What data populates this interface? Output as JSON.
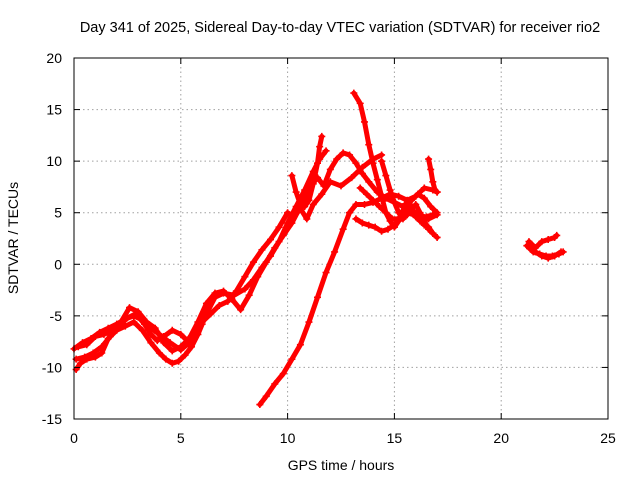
{
  "chart_data": {
    "type": "scatter",
    "title": "Day 341 of 2025, Sidereal Day-to-day VTEC variation (SDTVAR) for receiver rio2",
    "xlabel": "GPS time / hours",
    "ylabel": "SDTVAR / TECUs",
    "xlim": [
      0,
      25
    ],
    "ylim": [
      -15,
      20
    ],
    "x_ticks": [
      "0",
      "5",
      "10",
      "15",
      "20",
      "25"
    ],
    "y_ticks": [
      "-15",
      "-10",
      "-5",
      "0",
      "5",
      "10",
      "15",
      "20"
    ],
    "grid": true,
    "color": "#ff0000",
    "marker": "plus",
    "series": [
      {
        "name": "track-1",
        "points": [
          [
            0.0,
            -8.2
          ],
          [
            0.4,
            -7.6
          ],
          [
            0.8,
            -7.2
          ],
          [
            1.2,
            -6.6
          ],
          [
            1.6,
            -6.2
          ],
          [
            2.0,
            -5.8
          ],
          [
            2.4,
            -5.3
          ],
          [
            2.8,
            -5.0
          ],
          [
            3.2,
            -5.4
          ],
          [
            3.6,
            -6.2
          ],
          [
            4.0,
            -6.8
          ],
          [
            4.5,
            -7.6
          ],
          [
            5.0,
            -8.3
          ],
          [
            5.4,
            -7.6
          ],
          [
            5.8,
            -6.5
          ],
          [
            6.2,
            -4.8
          ],
          [
            6.6,
            -3.2
          ],
          [
            7.0,
            -2.8
          ],
          [
            7.5,
            -3.0
          ],
          [
            8.0,
            -2.4
          ],
          [
            8.4,
            -1.5
          ],
          [
            8.8,
            -0.3
          ],
          [
            9.2,
            0.8
          ],
          [
            9.6,
            2.2
          ],
          [
            10.0,
            4.0
          ],
          [
            10.4,
            5.6
          ],
          [
            10.8,
            7.2
          ],
          [
            11.2,
            9.0
          ],
          [
            11.5,
            10.2
          ],
          [
            11.8,
            11.0
          ]
        ]
      },
      {
        "name": "track-2",
        "points": [
          [
            0.1,
            -9.2
          ],
          [
            0.5,
            -9.0
          ],
          [
            0.9,
            -8.6
          ],
          [
            1.3,
            -8.0
          ],
          [
            1.7,
            -7.0
          ],
          [
            2.1,
            -6.0
          ],
          [
            2.5,
            -5.2
          ],
          [
            2.9,
            -4.8
          ],
          [
            3.3,
            -5.8
          ],
          [
            3.6,
            -6.8
          ],
          [
            3.9,
            -7.4
          ],
          [
            4.2,
            -7.0
          ],
          [
            4.6,
            -6.4
          ],
          [
            5.0,
            -6.8
          ],
          [
            5.3,
            -7.4
          ],
          [
            5.6,
            -6.6
          ],
          [
            6.0,
            -5.6
          ],
          [
            6.4,
            -4.8
          ],
          [
            6.8,
            -4.0
          ],
          [
            7.2,
            -3.6
          ],
          [
            7.6,
            -2.6
          ],
          [
            8.0,
            -1.2
          ],
          [
            8.4,
            0.2
          ],
          [
            8.8,
            1.4
          ],
          [
            9.2,
            2.4
          ],
          [
            9.6,
            3.6
          ],
          [
            10.0,
            5.0
          ],
          [
            10.3,
            4.6
          ],
          [
            10.6,
            5.4
          ],
          [
            10.9,
            4.4
          ],
          [
            11.2,
            5.8
          ],
          [
            11.6,
            6.8
          ],
          [
            12.0,
            8.0
          ],
          [
            12.5,
            7.6
          ],
          [
            13.0,
            8.4
          ],
          [
            13.5,
            9.4
          ],
          [
            14.0,
            10.2
          ],
          [
            14.4,
            10.6
          ]
        ]
      },
      {
        "name": "track-3",
        "points": [
          [
            0.1,
            -10.2
          ],
          [
            0.3,
            -9.6
          ],
          [
            0.6,
            -9.2
          ],
          [
            1.0,
            -9.0
          ],
          [
            1.3,
            -8.6
          ],
          [
            1.6,
            -7.2
          ],
          [
            2.0,
            -6.4
          ],
          [
            2.4,
            -6.0
          ],
          [
            2.8,
            -5.6
          ],
          [
            3.2,
            -6.4
          ],
          [
            3.6,
            -7.6
          ],
          [
            4.0,
            -8.6
          ],
          [
            4.3,
            -9.2
          ],
          [
            4.6,
            -9.6
          ],
          [
            4.9,
            -9.4
          ],
          [
            5.2,
            -8.8
          ],
          [
            5.5,
            -8.0
          ],
          [
            5.8,
            -6.8
          ],
          [
            6.0,
            -5.8
          ]
        ]
      },
      {
        "name": "track-4",
        "points": [
          [
            0.2,
            -8.0
          ],
          [
            0.6,
            -7.8
          ],
          [
            1.0,
            -7.0
          ],
          [
            1.4,
            -6.8
          ],
          [
            1.8,
            -6.4
          ],
          [
            2.2,
            -5.6
          ],
          [
            2.6,
            -4.2
          ],
          [
            3.0,
            -4.6
          ],
          [
            3.4,
            -5.6
          ],
          [
            3.8,
            -6.2
          ],
          [
            4.2,
            -7.6
          ],
          [
            4.6,
            -8.4
          ],
          [
            5.0,
            -8.0
          ],
          [
            5.4,
            -7.2
          ],
          [
            5.8,
            -5.6
          ],
          [
            6.2,
            -3.8
          ],
          [
            6.6,
            -2.8
          ],
          [
            7.0,
            -2.6
          ],
          [
            7.4,
            -3.4
          ],
          [
            7.8,
            -4.4
          ],
          [
            8.2,
            -3.0
          ],
          [
            8.6,
            -1.2
          ],
          [
            9.0,
            0.2
          ],
          [
            9.4,
            1.6
          ],
          [
            9.8,
            2.8
          ],
          [
            10.2,
            4.0
          ],
          [
            10.5,
            5.2
          ],
          [
            10.8,
            6.4
          ],
          [
            11.1,
            7.6
          ],
          [
            11.4,
            8.4
          ],
          [
            11.7,
            7.6
          ],
          [
            12.0,
            9.2
          ],
          [
            12.3,
            10.2
          ],
          [
            12.6,
            10.8
          ],
          [
            12.9,
            10.6
          ],
          [
            13.2,
            9.8
          ],
          [
            13.5,
            8.8
          ],
          [
            13.8,
            8.0
          ],
          [
            14.2,
            7.0
          ],
          [
            14.6,
            6.4
          ],
          [
            15.0,
            6.0
          ],
          [
            15.4,
            5.6
          ],
          [
            15.8,
            5.2
          ],
          [
            16.2,
            4.8
          ],
          [
            16.6,
            4.4
          ],
          [
            17.0,
            4.8
          ]
        ]
      },
      {
        "name": "track-5",
        "points": [
          [
            10.2,
            8.6
          ],
          [
            10.4,
            7.0
          ],
          [
            10.6,
            5.8
          ],
          [
            10.8,
            5.6
          ],
          [
            11.0,
            6.2
          ],
          [
            11.2,
            7.8
          ],
          [
            11.4,
            9.8
          ],
          [
            11.5,
            11.4
          ],
          [
            11.6,
            12.4
          ]
        ]
      },
      {
        "name": "track-6",
        "points": [
          [
            8.7,
            -13.6
          ],
          [
            9.0,
            -12.8
          ],
          [
            9.4,
            -11.6
          ],
          [
            9.8,
            -10.6
          ],
          [
            10.2,
            -9.2
          ],
          [
            10.6,
            -7.8
          ],
          [
            11.0,
            -5.6
          ],
          [
            11.4,
            -3.2
          ],
          [
            11.8,
            -0.8
          ],
          [
            12.2,
            1.2
          ],
          [
            12.6,
            3.4
          ],
          [
            12.9,
            5.0
          ],
          [
            13.2,
            5.8
          ],
          [
            13.6,
            5.8
          ],
          [
            14.0,
            6.0
          ],
          [
            14.4,
            6.4
          ],
          [
            14.8,
            6.8
          ],
          [
            15.2,
            6.6
          ],
          [
            15.6,
            6.2
          ],
          [
            16.0,
            6.6
          ],
          [
            16.4,
            7.4
          ],
          [
            16.8,
            7.2
          ],
          [
            17.0,
            7.0
          ]
        ]
      },
      {
        "name": "track-7",
        "points": [
          [
            13.1,
            16.6
          ],
          [
            13.4,
            15.6
          ],
          [
            13.6,
            13.8
          ],
          [
            13.8,
            11.6
          ],
          [
            14.0,
            9.8
          ],
          [
            14.2,
            8.2
          ],
          [
            14.4,
            6.6
          ],
          [
            14.6,
            5.0
          ],
          [
            14.8,
            4.2
          ],
          [
            15.0,
            3.6
          ],
          [
            15.2,
            4.2
          ],
          [
            15.4,
            5.2
          ],
          [
            15.6,
            6.2
          ],
          [
            15.8,
            5.6
          ],
          [
            16.0,
            4.6
          ],
          [
            16.2,
            4.2
          ],
          [
            16.4,
            3.8
          ],
          [
            16.6,
            3.6
          ],
          [
            16.8,
            3.0
          ],
          [
            17.0,
            2.6
          ]
        ]
      },
      {
        "name": "track-8",
        "points": [
          [
            13.4,
            7.4
          ],
          [
            13.7,
            6.8
          ],
          [
            14.0,
            6.2
          ],
          [
            14.3,
            5.6
          ],
          [
            14.6,
            5.0
          ],
          [
            14.9,
            4.4
          ],
          [
            15.2,
            4.4
          ],
          [
            15.5,
            5.4
          ],
          [
            15.8,
            6.2
          ],
          [
            16.1,
            6.8
          ],
          [
            16.4,
            6.4
          ],
          [
            16.7,
            5.6
          ],
          [
            17.0,
            5.0
          ]
        ]
      },
      {
        "name": "track-9",
        "points": [
          [
            14.4,
            10.0
          ],
          [
            14.6,
            8.6
          ],
          [
            14.8,
            7.2
          ],
          [
            15.0,
            6.0
          ],
          [
            15.2,
            5.0
          ],
          [
            15.4,
            4.4
          ],
          [
            15.6,
            4.8
          ],
          [
            15.8,
            5.4
          ],
          [
            16.0,
            5.8
          ],
          [
            16.2,
            5.0
          ],
          [
            16.4,
            4.2
          ],
          [
            16.6,
            3.4
          ],
          [
            16.8,
            3.0
          ]
        ]
      },
      {
        "name": "track-10",
        "points": [
          [
            13.2,
            4.4
          ],
          [
            13.5,
            4.0
          ],
          [
            13.8,
            3.8
          ],
          [
            14.1,
            3.6
          ],
          [
            14.4,
            3.2
          ],
          [
            14.7,
            3.4
          ],
          [
            15.0,
            3.8
          ],
          [
            15.3,
            4.6
          ],
          [
            15.6,
            5.0
          ],
          [
            15.9,
            4.8
          ],
          [
            16.2,
            4.6
          ],
          [
            16.5,
            4.6
          ],
          [
            16.8,
            4.8
          ]
        ]
      },
      {
        "name": "track-11",
        "points": [
          [
            16.6,
            10.2
          ],
          [
            16.7,
            9.2
          ],
          [
            16.8,
            8.0
          ],
          [
            16.9,
            7.2
          ],
          [
            17.0,
            7.0
          ]
        ]
      },
      {
        "name": "track-12",
        "points": [
          [
            21.2,
            1.8
          ],
          [
            21.5,
            1.2
          ],
          [
            21.8,
            1.0
          ],
          [
            22.1,
            0.8
          ],
          [
            22.4,
            0.8
          ],
          [
            22.7,
            1.0
          ],
          [
            22.9,
            1.2
          ]
        ]
      },
      {
        "name": "track-13",
        "points": [
          [
            21.3,
            2.2
          ],
          [
            21.6,
            1.6
          ],
          [
            21.9,
            2.2
          ],
          [
            22.2,
            2.4
          ],
          [
            22.5,
            2.6
          ],
          [
            22.6,
            2.8
          ]
        ]
      },
      {
        "name": "track-14",
        "points": [
          [
            21.6,
            1.2
          ],
          [
            21.9,
            0.8
          ],
          [
            22.2,
            0.6
          ],
          [
            22.5,
            0.8
          ],
          [
            22.8,
            1.2
          ]
        ]
      }
    ]
  }
}
